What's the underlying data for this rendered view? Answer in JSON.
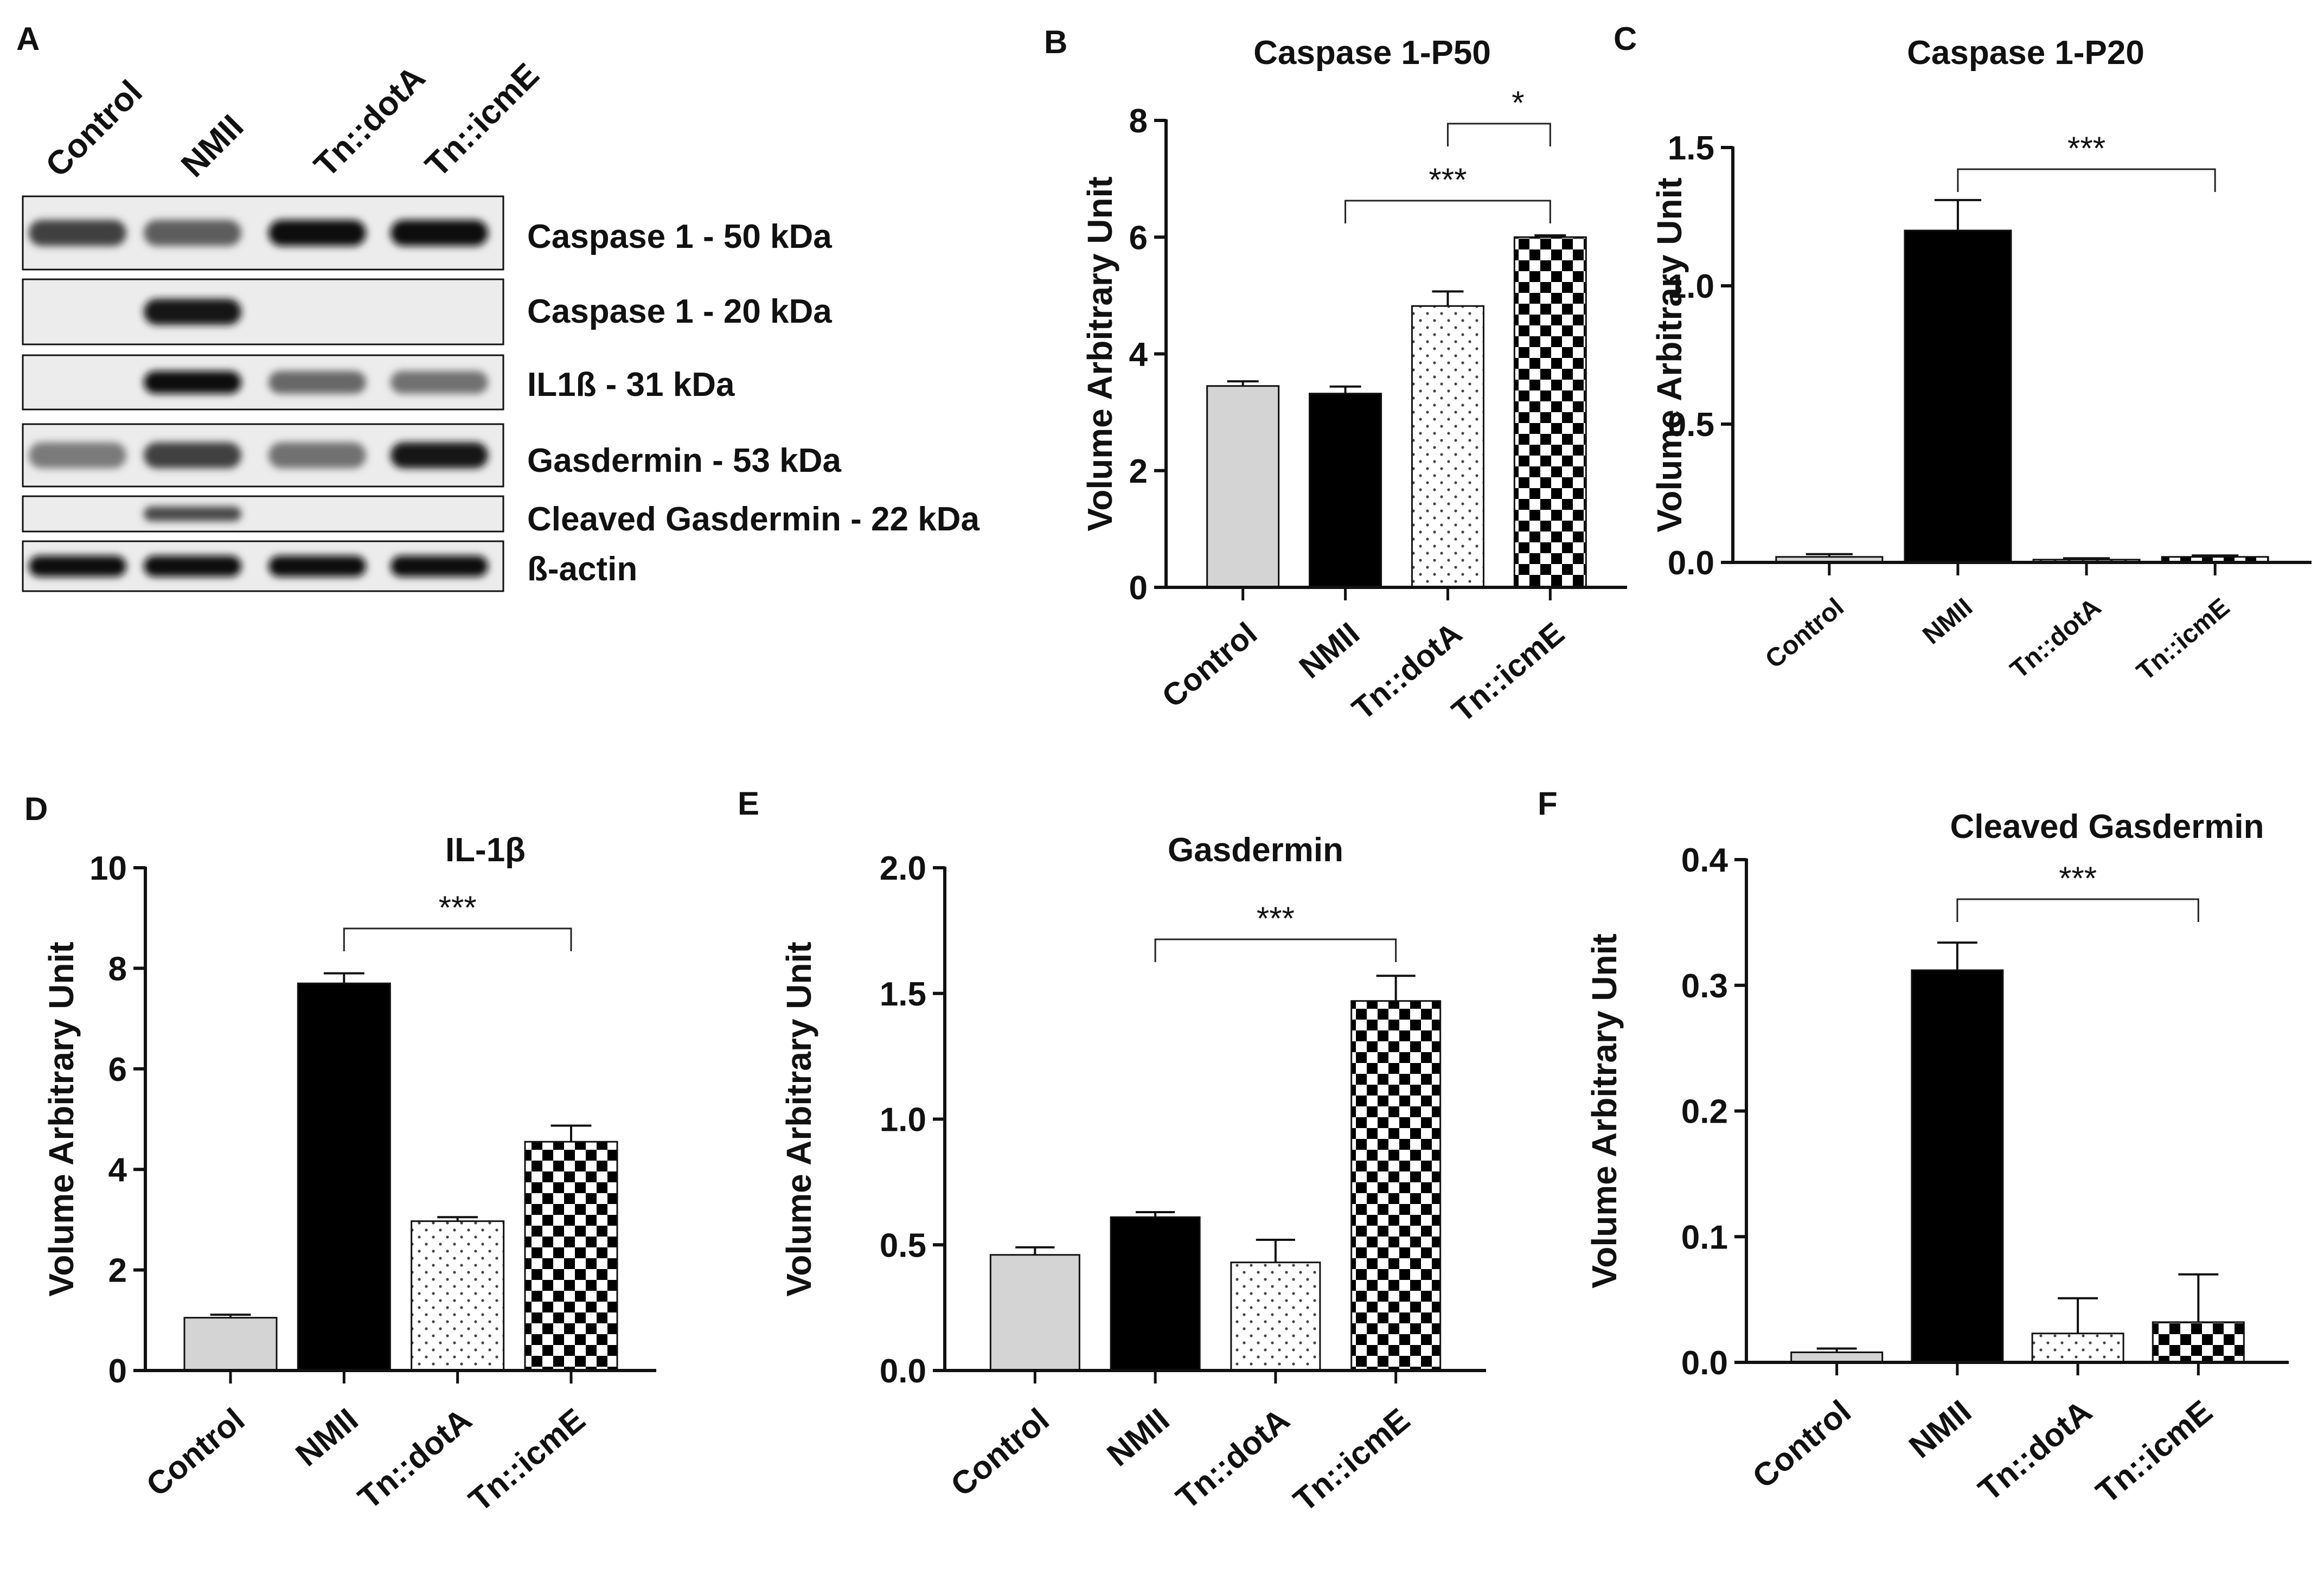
{
  "figure": {
    "panel_letters": [
      "A",
      "B",
      "C",
      "D",
      "E",
      "F"
    ]
  },
  "blot": {
    "lanes": [
      "Control",
      "NMII",
      "Tn::dotA",
      "Tn::icmE"
    ],
    "rows": [
      {
        "label": "Caspase 1 - 50 kDa",
        "intensities": [
          0.75,
          0.6,
          1.0,
          1.0
        ]
      },
      {
        "label": "Caspase 1 - 20 kDa",
        "intensities": [
          0.0,
          0.95,
          0.0,
          0.0
        ]
      },
      {
        "label": "IL1ß - 31 kDa",
        "intensities": [
          0.0,
          1.0,
          0.55,
          0.5
        ]
      },
      {
        "label": "Gasdermin - 53 kDa",
        "intensities": [
          0.45,
          0.75,
          0.5,
          0.95
        ]
      },
      {
        "label": "Cleaved Gasdermin - 22 kDa",
        "intensities": [
          0.0,
          0.7,
          0.0,
          0.0
        ]
      },
      {
        "label": "ß-actin",
        "intensities": [
          1.0,
          1.0,
          1.0,
          1.0
        ]
      }
    ]
  },
  "colors": {
    "control": "#d4d4d4",
    "nmii": "#000000",
    "axis": "#111111",
    "blot_background": "#ececec"
  },
  "chart_data": [
    {
      "panel": "B",
      "type": "bar",
      "title": "Caspase 1-P50",
      "ylabel": "Volume Arbitrary Unit",
      "categories": [
        "Control",
        "NMII",
        "Tn::dotA",
        "Tn::icmE"
      ],
      "values": [
        3.45,
        3.32,
        4.82,
        6.0
      ],
      "errors": [
        0.08,
        0.12,
        0.25,
        0.03
      ],
      "patterns": [
        "solid-gray",
        "solid-black",
        "dots",
        "checker"
      ],
      "ylim": [
        0,
        8
      ],
      "yticks": [
        "0",
        "2",
        "4",
        "6",
        "8"
      ],
      "significance": [
        {
          "from": 2,
          "to": 3,
          "label": "*"
        },
        {
          "from": 1,
          "to": 3,
          "label": "***"
        }
      ]
    },
    {
      "panel": "C",
      "type": "bar",
      "title": "Caspase 1-P20",
      "ylabel": "Volume Arbitrary Unit",
      "categories": [
        "Control",
        "NMII",
        "Tn::dotA",
        "Tn::icmE"
      ],
      "values": [
        0.02,
        1.2,
        0.01,
        0.02
      ],
      "errors": [
        0.01,
        0.11,
        0.005,
        0.005
      ],
      "patterns": [
        "solid-gray",
        "solid-black",
        "dots",
        "checker"
      ],
      "ylim": [
        0,
        1.5
      ],
      "yticks": [
        "0.0",
        "0.5",
        "1.0",
        "1.5"
      ],
      "significance": [
        {
          "from": 1,
          "to": 3,
          "label": "***"
        }
      ]
    },
    {
      "panel": "D",
      "type": "bar",
      "title": "IL-1β",
      "ylabel": "Volume Arbitrary Unit",
      "categories": [
        "Control",
        "NMII",
        "Tn::dotA",
        "Tn::icmE"
      ],
      "values": [
        1.05,
        7.7,
        2.97,
        4.55
      ],
      "errors": [
        0.06,
        0.2,
        0.08,
        0.32
      ],
      "patterns": [
        "solid-gray",
        "solid-black",
        "dots",
        "checker"
      ],
      "ylim": [
        0,
        10
      ],
      "yticks": [
        "0",
        "2",
        "4",
        "6",
        "8",
        "10"
      ],
      "significance": [
        {
          "from": 1,
          "to": 3,
          "label": "***"
        }
      ]
    },
    {
      "panel": "E",
      "type": "bar",
      "title": "Gasdermin",
      "ylabel": "Volume Arbitrary Unit",
      "categories": [
        "Control",
        "NMII",
        "Tn::dotA",
        "Tn::icmE"
      ],
      "values": [
        0.46,
        0.61,
        0.43,
        1.47
      ],
      "errors": [
        0.03,
        0.02,
        0.09,
        0.1
      ],
      "patterns": [
        "solid-gray",
        "solid-black",
        "dots",
        "checker"
      ],
      "ylim": [
        0,
        2.0
      ],
      "yticks": [
        "0.0",
        "0.5",
        "1.0",
        "1.5",
        "2.0"
      ],
      "significance": [
        {
          "from": 1,
          "to": 3,
          "label": "***"
        }
      ]
    },
    {
      "panel": "F",
      "type": "bar",
      "title": "Cleaved Gasdermin",
      "ylabel": "Volume Arbitrary Unit",
      "categories": [
        "Control",
        "NMII",
        "Tn::dotA",
        "Tn::icmE"
      ],
      "values": [
        0.008,
        0.312,
        0.023,
        0.032
      ],
      "errors": [
        0.003,
        0.022,
        0.028,
        0.038
      ],
      "patterns": [
        "solid-gray",
        "solid-black",
        "dots",
        "checker"
      ],
      "ylim": [
        0,
        0.4
      ],
      "yticks": [
        "0.0",
        "0.1",
        "0.2",
        "0.3",
        "0.4"
      ],
      "significance": [
        {
          "from": 1,
          "to": 3,
          "label": "***"
        }
      ]
    }
  ]
}
